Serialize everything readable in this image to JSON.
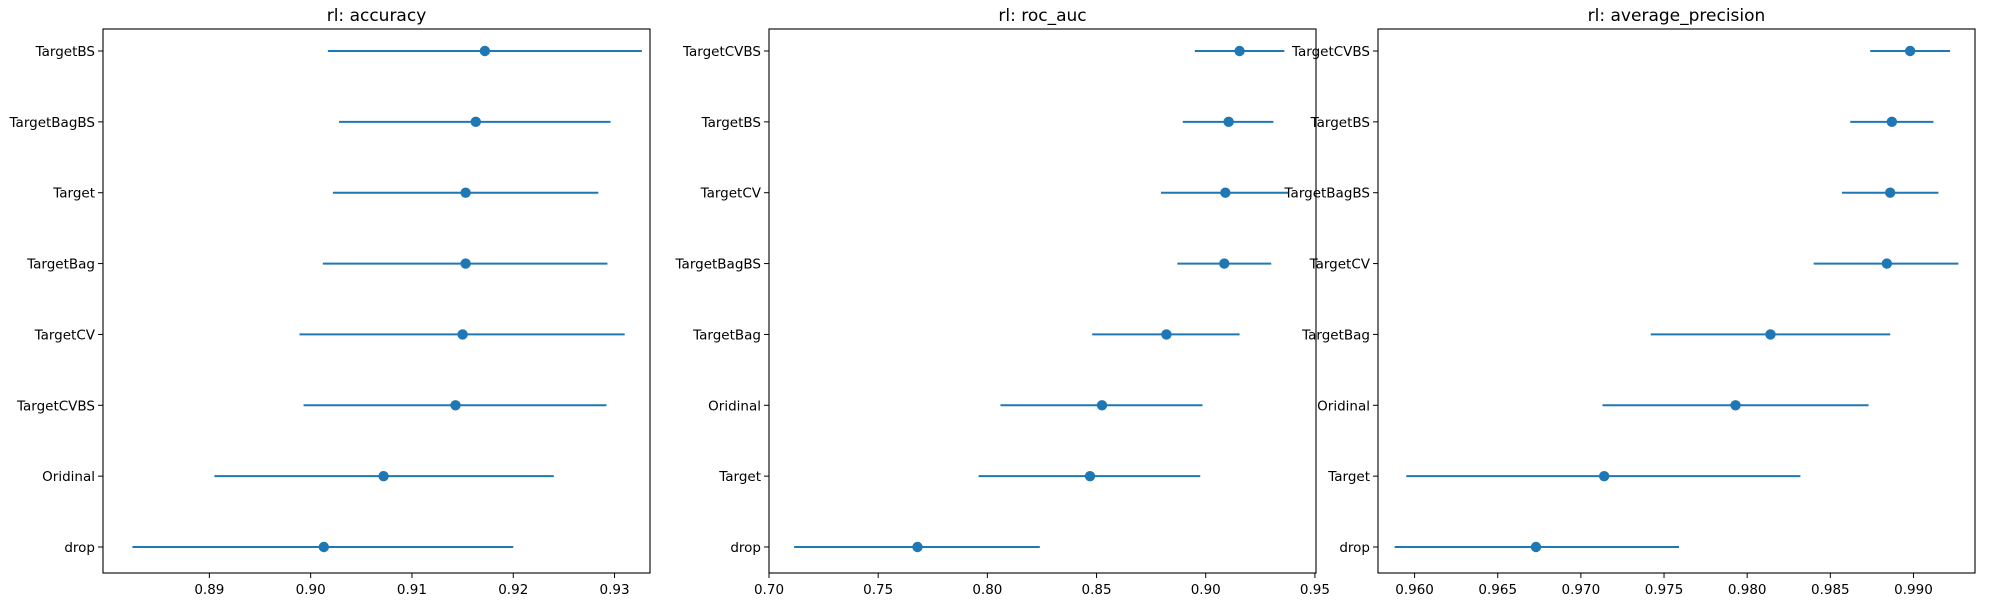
{
  "chart_data": [
    {
      "type": "errorbar",
      "title": "rl: accuracy",
      "xlim": [
        0.8795,
        0.9335
      ],
      "xticks": [
        0.89,
        0.9,
        0.91,
        0.92,
        0.93
      ],
      "xtick_labels": [
        "0.89",
        "0.90",
        "0.91",
        "0.92",
        "0.93"
      ],
      "categories": [
        "TargetBS",
        "TargetBagBS",
        "Target",
        "TargetBag",
        "TargetCV",
        "TargetCVBS",
        "Oridinal",
        "drop"
      ],
      "values": [
        0.9172,
        0.9163,
        0.9153,
        0.9153,
        0.915,
        0.9143,
        0.9072,
        0.9013
      ],
      "lower": [
        0.9017,
        0.9028,
        0.9022,
        0.9012,
        0.8989,
        0.8993,
        0.8905,
        0.8824
      ],
      "upper": [
        0.9327,
        0.9296,
        0.9284,
        0.9293,
        0.931,
        0.9292,
        0.924,
        0.92
      ],
      "color": "#1f77b4"
    },
    {
      "type": "errorbar",
      "title": "rl: roc_auc",
      "xlim": [
        0.7,
        0.9505
      ],
      "xticks": [
        0.7,
        0.75,
        0.8,
        0.85,
        0.9,
        0.95
      ],
      "xtick_labels": [
        "0.70",
        "0.75",
        "0.80",
        "0.85",
        "0.90",
        "0.95"
      ],
      "categories": [
        "TargetCVBS",
        "TargetBS",
        "TargetCV",
        "TargetBagBS",
        "TargetBag",
        "Oridinal",
        "Target",
        "drop"
      ],
      "values": [
        0.9155,
        0.9105,
        0.909,
        0.9085,
        0.882,
        0.8525,
        0.847,
        0.768
      ],
      "lower": [
        0.895,
        0.8895,
        0.8795,
        0.887,
        0.848,
        0.806,
        0.796,
        0.7115
      ],
      "upper": [
        0.936,
        0.931,
        0.938,
        0.93,
        0.9155,
        0.8985,
        0.8975,
        0.824
      ],
      "color": "#1f77b4"
    },
    {
      "type": "errorbar",
      "title": "rl: average_precision",
      "xlim": [
        0.9578,
        0.9937
      ],
      "xticks": [
        0.96,
        0.965,
        0.97,
        0.975,
        0.98,
        0.985,
        0.99
      ],
      "xtick_labels": [
        "0.960",
        "0.965",
        "0.970",
        "0.975",
        "0.980",
        "0.985",
        "0.990"
      ],
      "categories": [
        "TargetCVBS",
        "TargetBS",
        "TargetBagBS",
        "TargetCV",
        "TargetBag",
        "Oridinal",
        "Target",
        "drop"
      ],
      "values": [
        0.9898,
        0.9887,
        0.9886,
        0.9884,
        0.9814,
        0.9793,
        0.9714,
        0.9673
      ],
      "lower": [
        0.9874,
        0.9862,
        0.9857,
        0.984,
        0.9742,
        0.9713,
        0.9595,
        0.9588
      ],
      "upper": [
        0.9922,
        0.9912,
        0.9915,
        0.9927,
        0.9886,
        0.9873,
        0.9832,
        0.9759
      ],
      "color": "#1f77b4"
    }
  ]
}
